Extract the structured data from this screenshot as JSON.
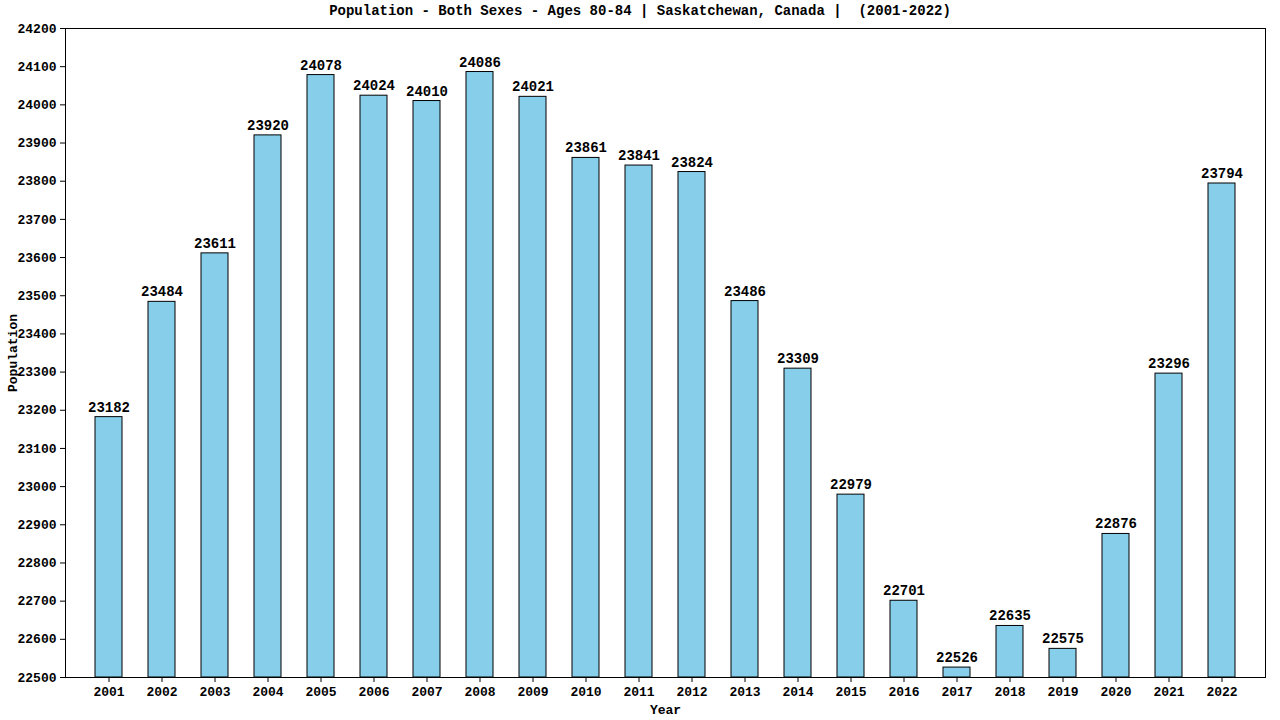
{
  "chart_data": {
    "type": "bar",
    "title": "Population - Both Sexes - Ages 80-84 | Saskatchewan, Canada |  (2001-2022)",
    "x_label": "Year",
    "y_label": "Population",
    "categories": [
      "2001",
      "2002",
      "2003",
      "2004",
      "2005",
      "2006",
      "2007",
      "2008",
      "2009",
      "2010",
      "2011",
      "2012",
      "2013",
      "2014",
      "2015",
      "2016",
      "2017",
      "2018",
      "2019",
      "2020",
      "2021",
      "2022"
    ],
    "values": [
      23182,
      23484,
      23611,
      23920,
      24078,
      24024,
      24010,
      24086,
      24021,
      23861,
      23841,
      23824,
      23486,
      23309,
      22979,
      22701,
      22526,
      22635,
      22575,
      22876,
      23296,
      23794
    ],
    "color": "#87ceeb",
    "ylim": [
      22500,
      24200
    ],
    "yticks": [
      22500,
      22600,
      22700,
      22800,
      22900,
      23000,
      23100,
      23200,
      23300,
      23400,
      23500,
      23600,
      23700,
      23800,
      23900,
      24000,
      24100,
      24200
    ],
    "grid": false,
    "data_labels": true
  }
}
